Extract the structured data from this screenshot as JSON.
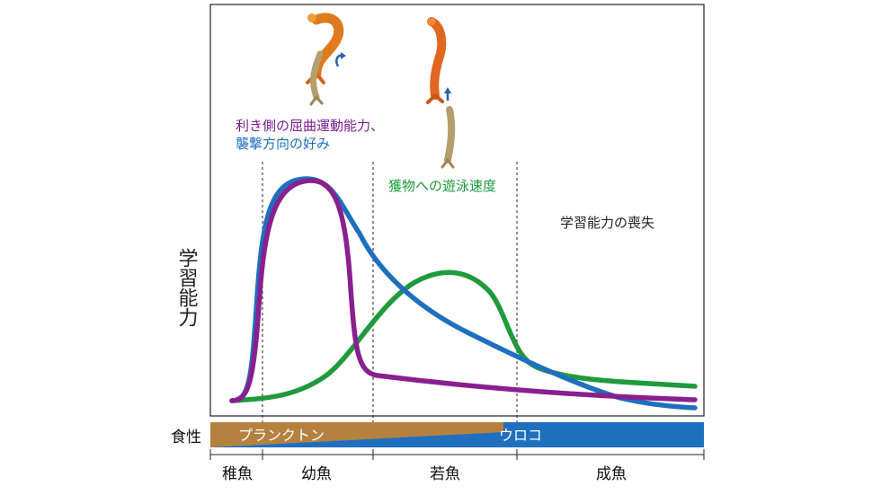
{
  "y_axis_label": "学習能力",
  "annotations": {
    "purple_label_line1": "利き側の屈曲運動能力、",
    "purple_label_line2": "襲撃方向の好み",
    "green_label": "獲物への遊泳速度",
    "loss_label": "学習能力の喪失"
  },
  "diet_bar": {
    "label": "食性",
    "plankton": "プランクトン",
    "scales": "ウロコ"
  },
  "stages": [
    "稚魚",
    "幼魚",
    "若魚",
    "成魚"
  ],
  "colors": {
    "blue_curve": "#1f6fbf",
    "purple_curve": "#8a1f8f",
    "green_curve": "#1f9a3c",
    "purple_text": "#7a1f8f",
    "green_text": "#1a9a3a",
    "plankton_fill": "#b5813f",
    "scales_fill": "#1f6fbf"
  },
  "icons": [
    "fish-attack-left-icon",
    "fish-attack-forward-icon"
  ]
}
